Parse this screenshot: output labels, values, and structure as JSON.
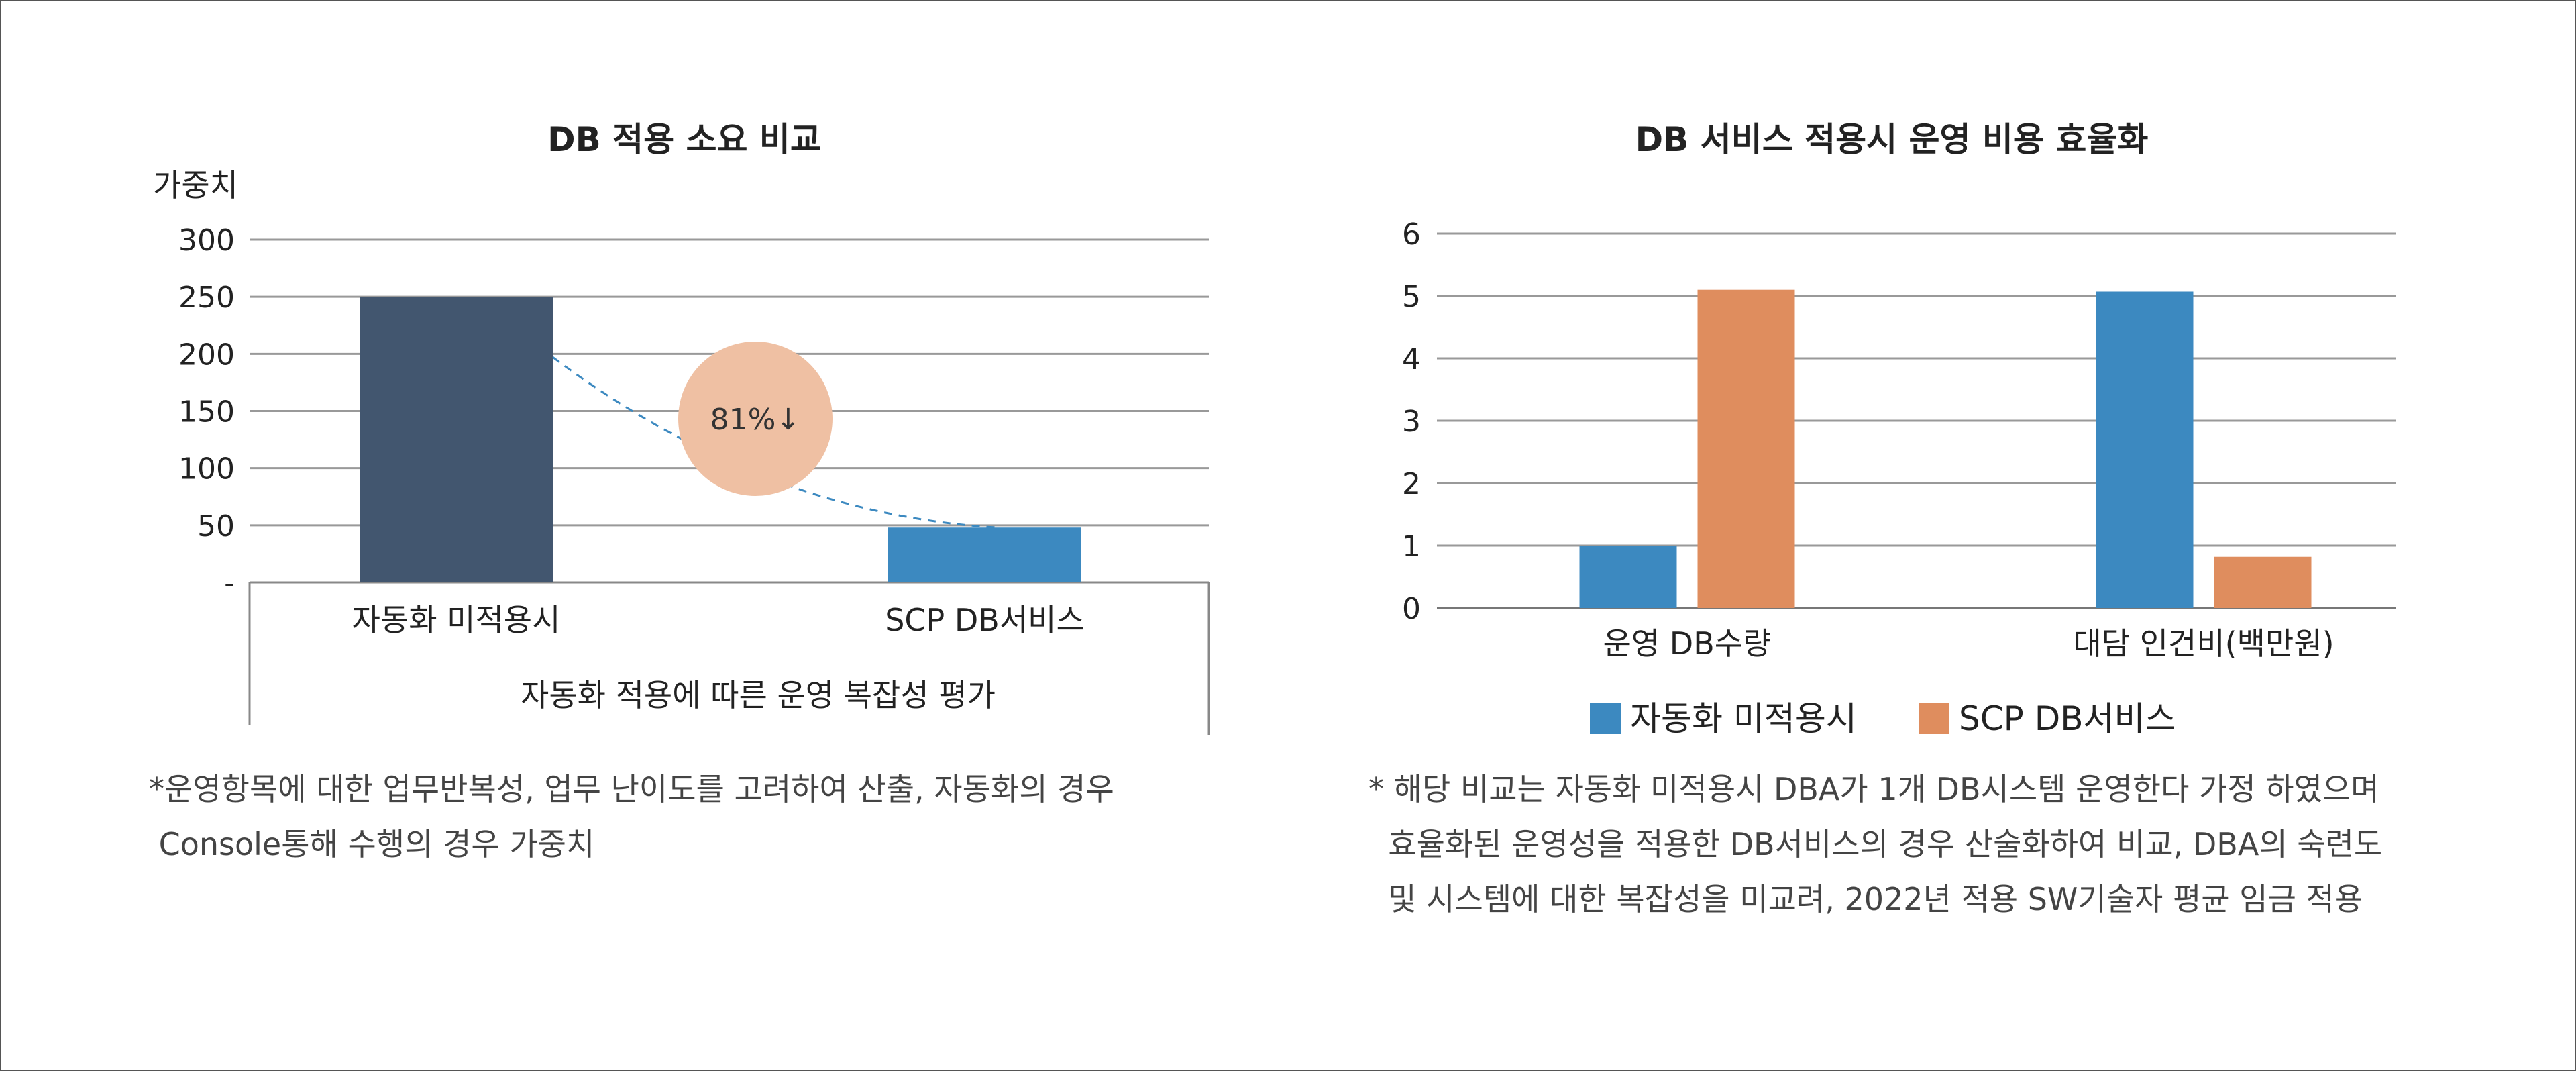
{
  "colors": {
    "dark_bar": "#42566f",
    "blue_bar": "#3c89c0",
    "orange_bar": "#df8d5e",
    "circle": "#efc0a3",
    "grid": "#999999",
    "dashed": "#3c89c0"
  },
  "chart_data": [
    {
      "type": "bar",
      "title": "DB 적용 소요 비교",
      "ylabel": "가중치",
      "xlabel": "자동화 적용에 따른 운영 복잡성 평가",
      "categories": [
        "자동화 미적용시",
        "SCP DB서비스"
      ],
      "values": [
        250,
        48
      ],
      "ylim": [
        0,
        300
      ],
      "yticks": [
        0,
        50,
        100,
        150,
        200,
        250,
        300
      ],
      "ytick_labels": [
        "-",
        "50",
        "100",
        "150",
        "200",
        "250",
        "300"
      ],
      "grid": true,
      "annotation": "81%↓"
    },
    {
      "type": "bar",
      "title": "DB 서비스 적용시 운영 비용 효율화",
      "categories": [
        "운영 DB수량",
        "대담 인건비(백만원)"
      ],
      "series": [
        {
          "name": "자동화 미적용시",
          "values": [
            1,
            5.07
          ]
        },
        {
          "name": "SCP DB서비스",
          "values": [
            5.1,
            0.82
          ]
        }
      ],
      "ylim": [
        0,
        6
      ],
      "yticks": [
        0,
        1,
        2,
        3,
        4,
        5,
        6
      ],
      "grid": true,
      "legend": "bottom"
    }
  ],
  "notes": {
    "left_line1": "*운영항목에 대한 업무반복성, 업무 난이도를 고려하여 산출, 자동화의 경우",
    "left_line2": " Console통해 수행의 경우 가중치",
    "right_line1": "* 해당 비교는 자동화 미적용시 DBA가 1개 DB시스템 운영한다 가정 하였으며",
    "right_line2": "  효율화된 운영성을 적용한 DB서비스의 경우 산술화하여 비교, DBA의 숙련도",
    "right_line3": "  및 시스템에 대한 복잡성을 미교려, 2022년 적용 SW기술자 평균 임금 적용"
  }
}
